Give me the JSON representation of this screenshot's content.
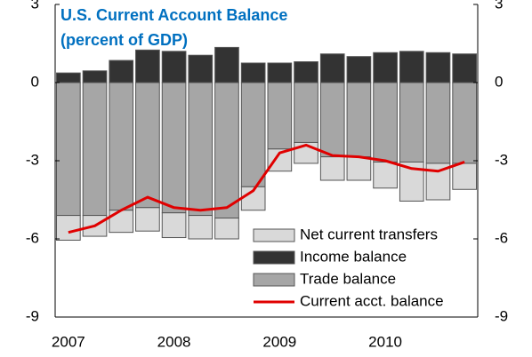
{
  "chart_data": {
    "type": "bar",
    "title": "U.S. Current Account Balance",
    "subtitle": "(percent of GDP)",
    "categories": [
      "2007",
      null,
      null,
      null,
      "2008",
      null,
      null,
      null,
      "2009",
      null,
      null,
      null,
      "2010",
      null,
      null,
      null
    ],
    "stacked": true,
    "series": [
      {
        "name": "Trade balance",
        "type": "bar",
        "color": "#a6a6a6",
        "values": [
          -5.1,
          -5.1,
          -4.9,
          -4.8,
          -5.0,
          -5.1,
          -5.2,
          -4.0,
          -2.55,
          -2.3,
          -2.85,
          -2.85,
          -3.05,
          -3.05,
          -3.1,
          -3.1
        ]
      },
      {
        "name": "Income balance",
        "type": "bar",
        "color": "#333333",
        "values": [
          0.37,
          0.45,
          0.85,
          1.25,
          1.2,
          1.05,
          1.35,
          0.75,
          0.75,
          0.8,
          1.1,
          1.0,
          1.15,
          1.2,
          1.15,
          1.1
        ]
      },
      {
        "name": "Net current transfers",
        "type": "bar",
        "color": "#d9d9d9",
        "values": [
          -0.95,
          -0.8,
          -0.85,
          -0.9,
          -0.95,
          -0.9,
          -0.8,
          -0.9,
          -0.85,
          -0.8,
          -0.9,
          -0.9,
          -1.0,
          -1.5,
          -1.4,
          -1.0
        ]
      },
      {
        "name": "Current acct. balance",
        "type": "line",
        "color": "#e00000",
        "values": [
          -5.75,
          -5.5,
          -4.9,
          -4.4,
          -4.8,
          -4.9,
          -4.8,
          -4.15,
          -2.7,
          -2.4,
          -2.8,
          -2.85,
          -3.0,
          -3.3,
          -3.4,
          -3.05
        ]
      }
    ],
    "ylim": [
      -9,
      3
    ],
    "yticks": [
      -9,
      -6,
      -3,
      0,
      3
    ],
    "y2lim": [
      -9,
      3
    ],
    "y2ticks": [
      -9,
      -6,
      -3,
      0,
      3
    ],
    "legend_position": "lower right"
  }
}
